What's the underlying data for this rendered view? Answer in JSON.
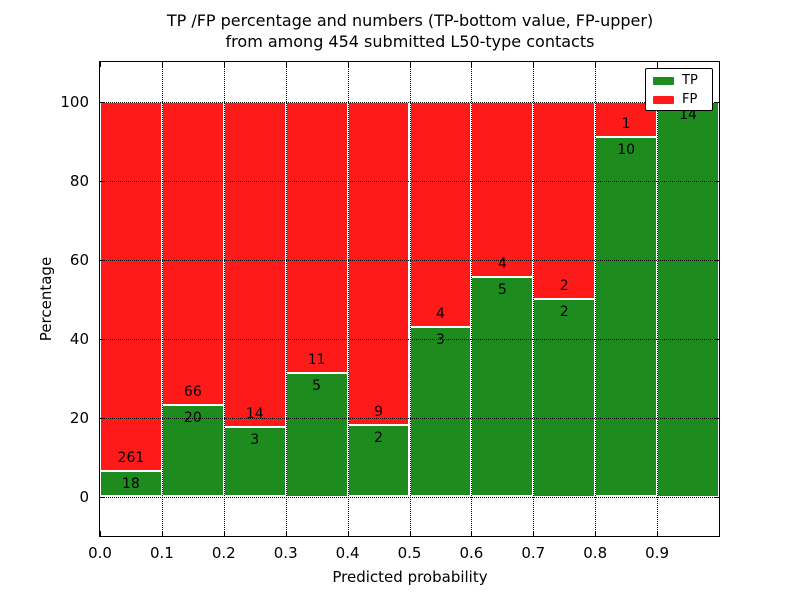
{
  "figure": {
    "title_line1": "TP /FP percentage and numbers (TP-bottom value, FP-upper)",
    "title_line2": "from among 454 submitted L50-type contacts",
    "xlabel": "Predicted probability",
    "ylabel": "Percentage"
  },
  "legend": {
    "position": "upper right",
    "entries": [
      {
        "label": "TP",
        "color": "#1e8b1e"
      },
      {
        "label": "FP",
        "color": "#ff1a1a"
      }
    ]
  },
  "colors": {
    "tp": "#1e8b1e",
    "fp": "#ff1a1a",
    "grid": "#000000",
    "axis": "#000000",
    "background": "#ffffff"
  },
  "chart_data": {
    "type": "bar",
    "stacked": true,
    "normalized_to_percent": true,
    "title": "TP /FP percentage and numbers (TP-bottom value, FP-upper)\nfrom among 454 submitted L50-type contacts",
    "xlabel": "Predicted probability",
    "ylabel": "Percentage",
    "total_contacts": 454,
    "bin_width": 0.1,
    "bin_starts": [
      0.0,
      0.1,
      0.2,
      0.3,
      0.4,
      0.5,
      0.6,
      0.7,
      0.8,
      0.9
    ],
    "x_tick_labels": [
      "0.0",
      "0.1",
      "0.2",
      "0.3",
      "0.4",
      "0.5",
      "0.6",
      "0.7",
      "0.8",
      "0.9"
    ],
    "y_tick_values": [
      0,
      20,
      40,
      60,
      80,
      100
    ],
    "xlim": [
      0.0,
      1.0
    ],
    "ylim": [
      -10,
      110
    ],
    "grid": "dotted",
    "legend_position": "upper right",
    "series": [
      {
        "name": "TP",
        "color": "#1e8b1e",
        "counts": [
          18,
          20,
          3,
          5,
          2,
          3,
          5,
          2,
          10,
          14
        ]
      },
      {
        "name": "FP",
        "color": "#ff1a1a",
        "counts": [
          261,
          66,
          14,
          11,
          9,
          4,
          4,
          2,
          1,
          0
        ]
      }
    ],
    "tp_percent": [
      6.5,
      23.3,
      17.6,
      31.2,
      18.2,
      42.9,
      55.6,
      50.0,
      90.9,
      100.0
    ]
  }
}
